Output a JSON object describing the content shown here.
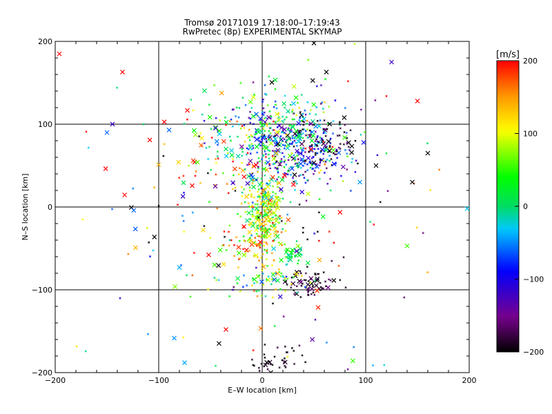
{
  "chart_data": {
    "type": "scatter",
    "title": "Tromsø 20171019 17:18:00–17:19:43",
    "subtitle": "RwPretec (8p) EXPERIMENTAL SKYMAP",
    "xlabel": "E–W location [km]",
    "ylabel": "N–S location [km]",
    "xlim": [
      -200,
      200
    ],
    "ylim": [
      -200,
      200
    ],
    "xticks": [
      -200,
      -100,
      0,
      100,
      200
    ],
    "yticks": [
      -200,
      -100,
      0,
      100,
      200
    ],
    "xtick_labels": [
      "−200",
      "−100",
      "0",
      "100",
      "200"
    ],
    "ytick_labels": [
      "−200",
      "−100",
      "0",
      "100",
      "200"
    ],
    "grid": true,
    "colorbar": {
      "label": "[m/s]",
      "min": -200,
      "max": 200,
      "ticks": [
        200,
        100,
        0,
        -100,
        -200
      ],
      "tick_labels": [
        "200",
        "100",
        "0",
        "−100",
        "−200"
      ]
    },
    "clusters": [
      {
        "cx": 2,
        "cy": -5,
        "sx": 10,
        "sy": 22,
        "vel": 80,
        "vs": 60,
        "n": 260
      },
      {
        "cx": 25,
        "cy": 80,
        "sx": 28,
        "sy": 22,
        "vel": -60,
        "vs": 70,
        "n": 280
      },
      {
        "cx": 45,
        "cy": 60,
        "sx": 18,
        "sy": 18,
        "vel": -110,
        "vs": 60,
        "n": 110
      },
      {
        "cx": 0,
        "cy": 100,
        "sx": 30,
        "sy": 22,
        "vel": 20,
        "vs": 90,
        "n": 160
      },
      {
        "cx": 45,
        "cy": -92,
        "sx": 14,
        "sy": 8,
        "vel": -190,
        "vs": 20,
        "n": 70
      },
      {
        "cx": 5,
        "cy": -92,
        "sx": 25,
        "sy": 10,
        "vel": 40,
        "vs": 80,
        "n": 60
      },
      {
        "cx": 15,
        "cy": -185,
        "sx": 15,
        "sy": 10,
        "vel": -195,
        "vs": 10,
        "n": 40
      },
      {
        "cx": 30,
        "cy": -58,
        "sx": 6,
        "sy": 6,
        "vel": 10,
        "vs": 30,
        "n": 40
      },
      {
        "cx": -10,
        "cy": -45,
        "sx": 18,
        "sy": 15,
        "vel": 150,
        "vs": 60,
        "n": 70
      },
      {
        "cx": 60,
        "cy": 80,
        "sx": 15,
        "sy": 15,
        "vel": -190,
        "vs": 20,
        "n": 60
      },
      {
        "cx": -20,
        "cy": 40,
        "sx": 35,
        "sy": 20,
        "vel": 150,
        "vs": 80,
        "n": 60
      },
      {
        "cx": 0,
        "cy": 0,
        "sx": 90,
        "sy": 90,
        "vel": 0,
        "vs": 180,
        "n": 200
      }
    ],
    "points_fixed": [
      {
        "x": -196,
        "y": 185,
        "v": 200
      },
      {
        "x": -135,
        "y": 163,
        "v": 200
      },
      {
        "x": -150,
        "y": 90,
        "v": -60
      },
      {
        "x": -90,
        "y": 93,
        "v": -60
      },
      {
        "x": -80,
        "y": -73,
        "v": -40
      },
      {
        "x": -75,
        "y": -188,
        "v": -40
      },
      {
        "x": 62,
        "y": 163,
        "v": -200
      },
      {
        "x": 125,
        "y": 175,
        "v": -120
      },
      {
        "x": 160,
        "y": 65,
        "v": -200
      },
      {
        "x": 145,
        "y": 30,
        "v": -200
      },
      {
        "x": 110,
        "y": 50,
        "v": -200
      },
      {
        "x": 150,
        "y": 128,
        "v": 200
      },
      {
        "x": -35,
        "y": -148,
        "v": 200
      },
      {
        "x": 50,
        "y": 198,
        "v": -200
      },
      {
        "x": 198,
        "y": -2,
        "v": -30
      }
    ]
  }
}
